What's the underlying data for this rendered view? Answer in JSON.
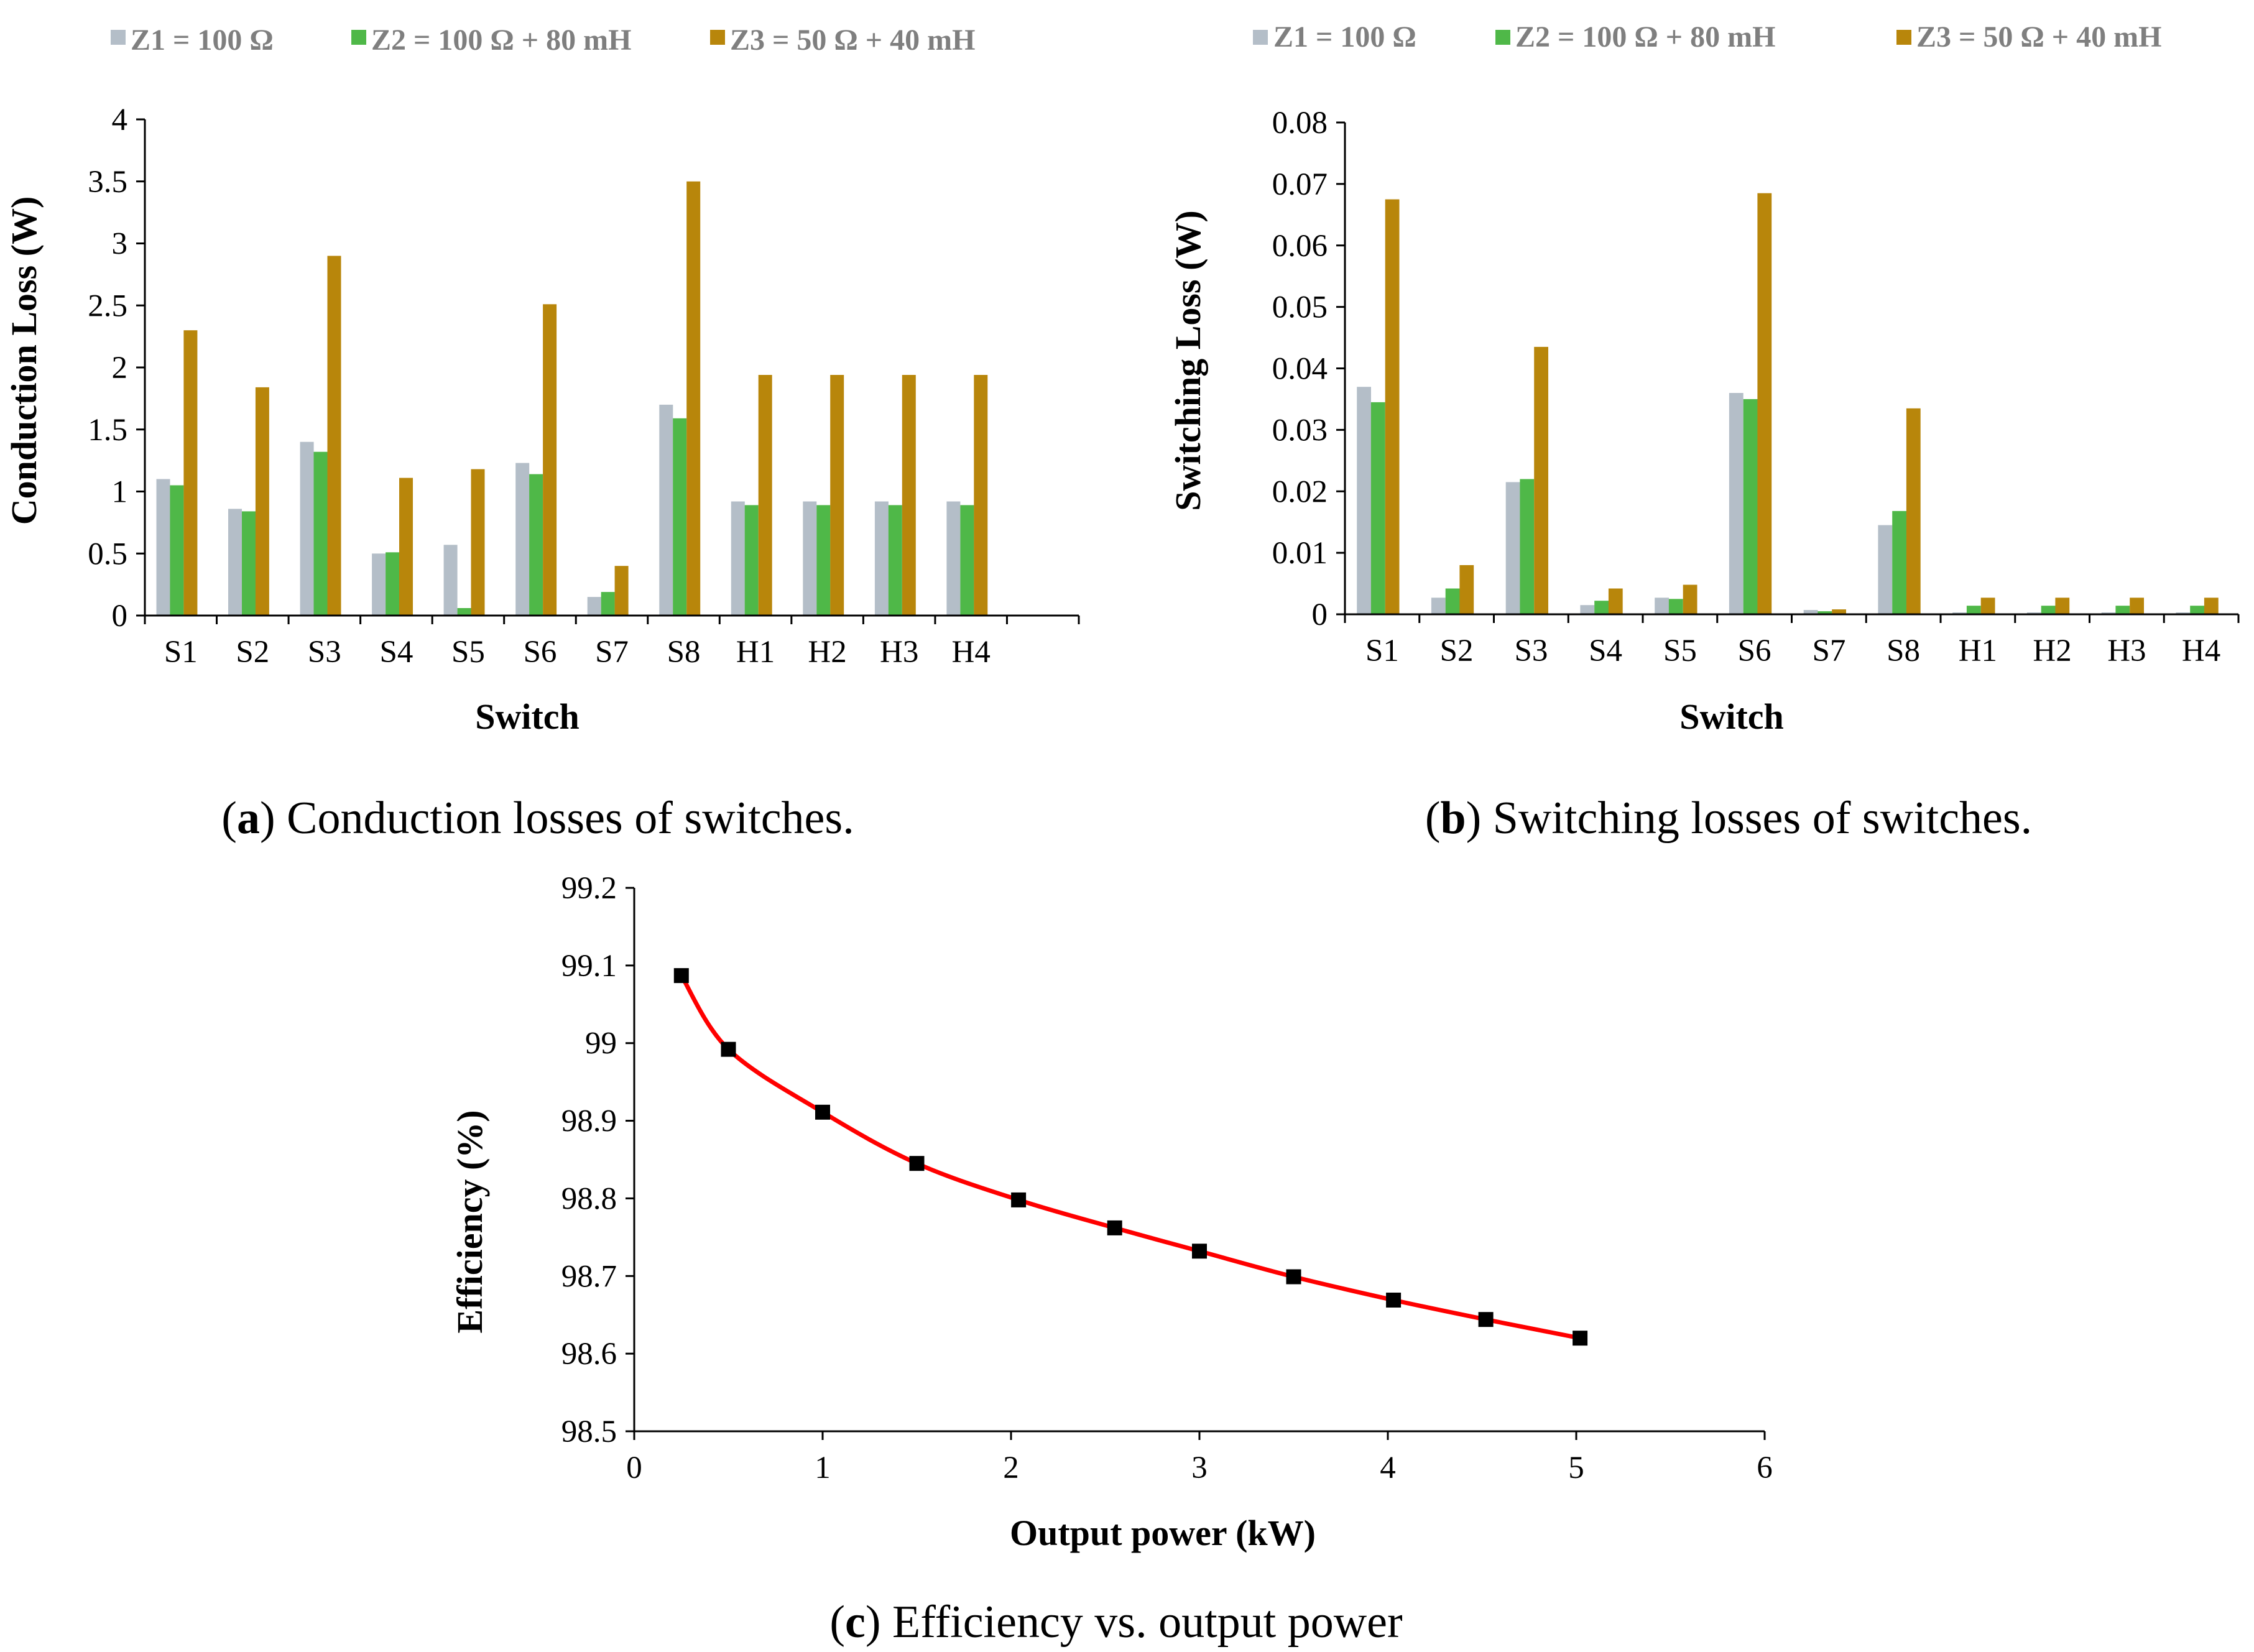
{
  "chart_data": [
    {
      "type": "bar",
      "title": "",
      "xlabel": "Switch",
      "ylabel": "Conduction Loss (W)",
      "categories": [
        "S1",
        "S2",
        "S3",
        "S4",
        "S5",
        "S6",
        "S7",
        "S8",
        "H1",
        "H2",
        "H3",
        "H4"
      ],
      "series": [
        {
          "name": "Z1 = 100 Ω",
          "color": "#b4bec8",
          "values": [
            1.1,
            0.86,
            1.4,
            0.5,
            0.57,
            1.23,
            0.15,
            1.7,
            0.92,
            0.92,
            0.92,
            0.92
          ]
        },
        {
          "name": "Z2 = 100 Ω + 80 mH",
          "color": "#4fb848",
          "values": [
            1.05,
            0.84,
            1.32,
            0.51,
            0.06,
            1.14,
            0.19,
            1.59,
            0.89,
            0.89,
            0.89,
            0.89
          ]
        },
        {
          "name": "Z3 = 50 Ω + 40 mH",
          "color": "#b8860b",
          "values": [
            2.3,
            1.84,
            2.9,
            1.11,
            1.18,
            2.51,
            0.4,
            3.5,
            1.94,
            1.94,
            1.94,
            1.94
          ]
        }
      ],
      "ylim": [
        0,
        4
      ],
      "yticks": [
        "0",
        "0.5",
        "1",
        "1.5",
        "2",
        "2.5",
        "3",
        "3.5",
        "4"
      ],
      "caption_letter": "a",
      "caption_text": "Conduction losses of switches."
    },
    {
      "type": "bar",
      "title": "",
      "xlabel": "Switch",
      "ylabel": "Switching Loss (W)",
      "categories": [
        "S1",
        "S2",
        "S3",
        "S4",
        "S5",
        "S6",
        "S7",
        "S8",
        "H1",
        "H2",
        "H3",
        "H4"
      ],
      "series": [
        {
          "name": "Z1 = 100 Ω",
          "color": "#b4bec8",
          "values": [
            0.037,
            0.0027,
            0.0215,
            0.0015,
            0.0027,
            0.036,
            0.0007,
            0.0145,
            0.0003,
            0.0003,
            0.0003,
            0.0003
          ]
        },
        {
          "name": "Z2 = 100 Ω + 80 mH",
          "color": "#4fb848",
          "values": [
            0.0345,
            0.0042,
            0.022,
            0.0022,
            0.0025,
            0.035,
            0.0005,
            0.0168,
            0.0014,
            0.0014,
            0.0014,
            0.0014
          ]
        },
        {
          "name": "Z3 = 50 Ω + 40 mH",
          "color": "#b8860b",
          "values": [
            0.0675,
            0.008,
            0.0435,
            0.0042,
            0.0048,
            0.0685,
            0.0008,
            0.0335,
            0.0027,
            0.0027,
            0.0027,
            0.0027
          ]
        }
      ],
      "ylim": [
        0,
        0.08
      ],
      "yticks": [
        "0",
        "0.01",
        "0.02",
        "0.03",
        "0.04",
        "0.05",
        "0.06",
        "0.07",
        "0.08"
      ],
      "caption_letter": "b",
      "caption_text": "Switching losses of switches."
    },
    {
      "type": "line",
      "title": "",
      "xlabel": "Output power (kW)",
      "ylabel": "Efficiency (%)",
      "series": [
        {
          "name": "Efficiency",
          "line_color": "#ff0000",
          "marker_color": "#000000",
          "x": [
            0.25,
            0.5,
            1.0,
            1.5,
            2.04,
            2.55,
            3.0,
            3.5,
            4.03,
            4.52,
            5.02
          ],
          "y": [
            99.087,
            98.992,
            98.911,
            98.845,
            98.798,
            98.762,
            98.732,
            98.699,
            98.669,
            98.644,
            98.62
          ]
        }
      ],
      "xlim": [
        0,
        6
      ],
      "ylim": [
        98.5,
        99.2
      ],
      "xticks": [
        "0",
        "1",
        "2",
        "3",
        "4",
        "5",
        "6"
      ],
      "yticks": [
        "98.5",
        "98.6",
        "98.7",
        "98.8",
        "98.9",
        "99",
        "99.1",
        "99.2"
      ],
      "caption_letter": "c",
      "caption_text": "Efficiency vs. output power"
    }
  ]
}
